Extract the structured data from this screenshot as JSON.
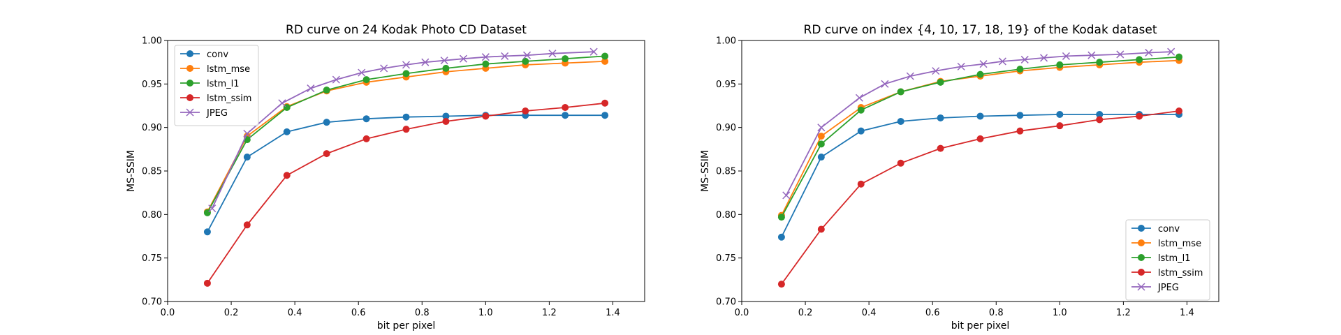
{
  "chart_data": [
    {
      "type": "line",
      "title": "RD curve on 24 Kodak Photo CD Dataset",
      "xlabel": "bit per pixel",
      "ylabel": "MS-SSIM",
      "xlim": [
        0.0,
        1.5
      ],
      "ylim": [
        0.7,
        1.0
      ],
      "xticks": [
        "0.0",
        "0.2",
        "0.4",
        "0.6",
        "0.8",
        "1.0",
        "1.2",
        "1.4"
      ],
      "yticks": [
        "0.70",
        "0.75",
        "0.80",
        "0.85",
        "0.90",
        "0.95",
        "1.00"
      ],
      "grid": false,
      "legend": "upper-left",
      "series": [
        {
          "name": "conv",
          "color": "#1f77b4",
          "marker": "circle",
          "x": [
            0.125,
            0.25,
            0.375,
            0.5,
            0.625,
            0.75,
            0.875,
            1.0,
            1.125,
            1.25,
            1.375
          ],
          "y": [
            0.78,
            0.866,
            0.895,
            0.906,
            0.91,
            0.912,
            0.913,
            0.914,
            0.914,
            0.914,
            0.914
          ]
        },
        {
          "name": "lstm_mse",
          "color": "#ff7f0e",
          "marker": "circle",
          "x": [
            0.125,
            0.25,
            0.375,
            0.5,
            0.625,
            0.75,
            0.875,
            1.0,
            1.125,
            1.25,
            1.375
          ],
          "y": [
            0.803,
            0.89,
            0.924,
            0.942,
            0.952,
            0.958,
            0.964,
            0.968,
            0.972,
            0.974,
            0.976
          ]
        },
        {
          "name": "lstm_l1",
          "color": "#2ca02c",
          "marker": "circle",
          "x": [
            0.125,
            0.25,
            0.375,
            0.5,
            0.625,
            0.75,
            0.875,
            1.0,
            1.125,
            1.25,
            1.375
          ],
          "y": [
            0.802,
            0.886,
            0.923,
            0.943,
            0.955,
            0.962,
            0.968,
            0.973,
            0.976,
            0.979,
            0.982
          ]
        },
        {
          "name": "lstm_ssim",
          "color": "#d62728",
          "marker": "circle",
          "x": [
            0.125,
            0.25,
            0.375,
            0.5,
            0.625,
            0.75,
            0.875,
            1.0,
            1.125,
            1.25,
            1.375
          ],
          "y": [
            0.721,
            0.788,
            0.845,
            0.87,
            0.887,
            0.898,
            0.907,
            0.913,
            0.919,
            0.923,
            0.928
          ]
        },
        {
          "name": "JPEG",
          "color": "#9467bd",
          "marker": "x",
          "x": [
            0.14,
            0.25,
            0.36,
            0.45,
            0.53,
            0.61,
            0.68,
            0.75,
            0.81,
            0.87,
            0.93,
            1.0,
            1.06,
            1.13,
            1.21,
            1.34
          ],
          "y": [
            0.807,
            0.893,
            0.928,
            0.945,
            0.955,
            0.963,
            0.968,
            0.972,
            0.975,
            0.977,
            0.979,
            0.981,
            0.982,
            0.983,
            0.985,
            0.987
          ]
        }
      ]
    },
    {
      "type": "line",
      "title": "RD curve on index {4, 10, 17, 18, 19} of the Kodak dataset",
      "xlabel": "bit per pixel",
      "ylabel": "MS-SSIM",
      "xlim": [
        0.0,
        1.5
      ],
      "ylim": [
        0.7,
        1.0
      ],
      "xticks": [
        "0.0",
        "0.2",
        "0.4",
        "0.6",
        "0.8",
        "1.0",
        "1.2",
        "1.4"
      ],
      "yticks": [
        "0.70",
        "0.75",
        "0.80",
        "0.85",
        "0.90",
        "0.95",
        "1.00"
      ],
      "grid": false,
      "legend": "lower-right",
      "series": [
        {
          "name": "conv",
          "color": "#1f77b4",
          "marker": "circle",
          "x": [
            0.125,
            0.25,
            0.375,
            0.5,
            0.625,
            0.75,
            0.875,
            1.0,
            1.125,
            1.25,
            1.375
          ],
          "y": [
            0.774,
            0.866,
            0.896,
            0.907,
            0.911,
            0.913,
            0.914,
            0.915,
            0.915,
            0.915,
            0.915
          ]
        },
        {
          "name": "lstm_mse",
          "color": "#ff7f0e",
          "marker": "circle",
          "x": [
            0.125,
            0.25,
            0.375,
            0.5,
            0.625,
            0.75,
            0.875,
            1.0,
            1.125,
            1.25,
            1.375
          ],
          "y": [
            0.799,
            0.89,
            0.923,
            0.941,
            0.953,
            0.959,
            0.965,
            0.969,
            0.972,
            0.975,
            0.977
          ]
        },
        {
          "name": "lstm_l1",
          "color": "#2ca02c",
          "marker": "circle",
          "x": [
            0.125,
            0.25,
            0.375,
            0.5,
            0.625,
            0.75,
            0.875,
            1.0,
            1.125,
            1.25,
            1.375
          ],
          "y": [
            0.797,
            0.881,
            0.92,
            0.941,
            0.952,
            0.961,
            0.967,
            0.972,
            0.975,
            0.978,
            0.981
          ]
        },
        {
          "name": "lstm_ssim",
          "color": "#d62728",
          "marker": "circle",
          "x": [
            0.125,
            0.25,
            0.375,
            0.5,
            0.625,
            0.75,
            0.875,
            1.0,
            1.125,
            1.25,
            1.375
          ],
          "y": [
            0.72,
            0.783,
            0.835,
            0.859,
            0.876,
            0.887,
            0.896,
            0.902,
            0.909,
            0.913,
            0.919
          ]
        },
        {
          "name": "JPEG",
          "color": "#9467bd",
          "marker": "x",
          "x": [
            0.14,
            0.25,
            0.37,
            0.45,
            0.53,
            0.61,
            0.69,
            0.76,
            0.82,
            0.89,
            0.95,
            1.02,
            1.1,
            1.19,
            1.28,
            1.35
          ],
          "y": [
            0.822,
            0.9,
            0.934,
            0.95,
            0.959,
            0.965,
            0.97,
            0.973,
            0.976,
            0.978,
            0.98,
            0.982,
            0.983,
            0.984,
            0.986,
            0.987
          ]
        }
      ]
    }
  ]
}
